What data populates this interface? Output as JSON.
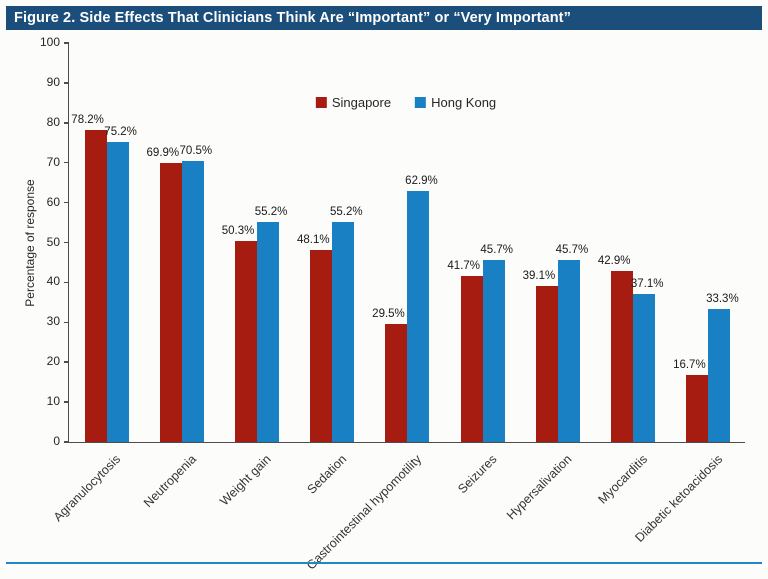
{
  "figure": {
    "title": "Figure 2. Side Effects That Clinicians Think Are “Important” or “Very Important”"
  },
  "chart_data": {
    "type": "bar",
    "title": "Figure 2. Side Effects That Clinicians Think Are “Important” or “Very Important”",
    "categories": [
      "Agranulocytosis",
      "Neutropenia",
      "Weight gain",
      "Sedation",
      "Gastrointestinal hypomotility",
      "Seizures",
      "Hypersalivation",
      "Myocarditis",
      "Diabetic ketoacidosis"
    ],
    "series": [
      {
        "name": "Singapore",
        "color": "#a61c10",
        "values": [
          78.2,
          69.9,
          50.3,
          48.1,
          29.5,
          41.7,
          39.1,
          42.9,
          16.7
        ]
      },
      {
        "name": "Hong Kong",
        "color": "#1980c4",
        "values": [
          75.2,
          70.5,
          55.2,
          55.2,
          62.9,
          45.7,
          45.7,
          37.1,
          33.3
        ]
      }
    ],
    "value_label_suffix": "%",
    "xlabel": "",
    "ylabel": "Percentage of response",
    "ylim": [
      0,
      100
    ],
    "ytick_step": 10,
    "legend_position": "top-center",
    "grid": false
  },
  "colors": {
    "title_bar": "#1c4e7c",
    "title_text": "#ffffff",
    "singapore_bar": "#a61c10",
    "hongkong_bar": "#1980c4",
    "axis_line": "#4d4d4d",
    "bottom_rule": "#2585c7",
    "background": "#fcfdfb"
  }
}
